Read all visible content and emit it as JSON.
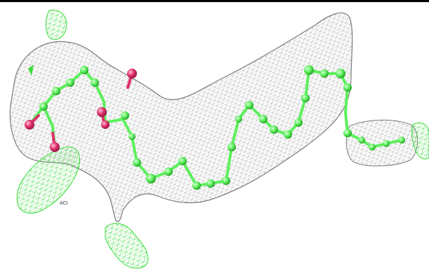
{
  "image": {
    "subject": "electron-density-mesh-with-ligand",
    "colors": {
      "background": "#ffffff",
      "density_mesh": "#8c8c8c",
      "difference_mesh": "#3cdc3c",
      "carbon": "#5cf05c",
      "oxygen": "#e0306e",
      "frame": "#000000"
    }
  },
  "label": {
    "text": "ACI"
  }
}
